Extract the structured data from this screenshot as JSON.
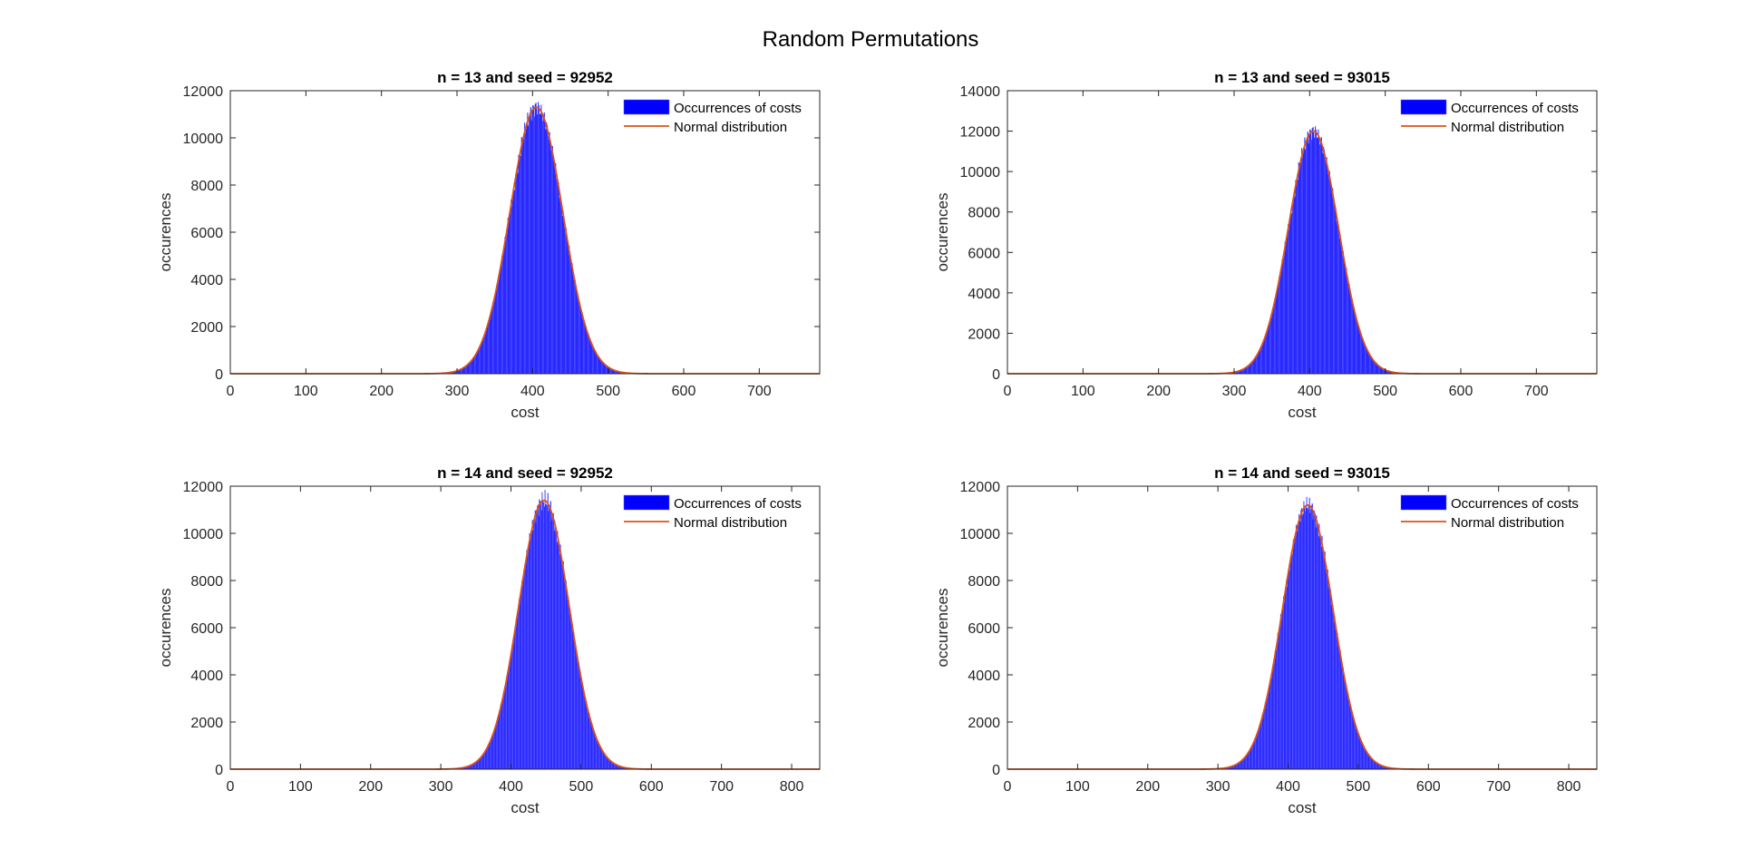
{
  "figure": {
    "title": "Random Permutations"
  },
  "colors": {
    "bars": "#0000ff",
    "bar_edge": "#6a6aff",
    "normal_curve": "#d95319",
    "axes": "#262626"
  },
  "chart_data": [
    {
      "type": "bar",
      "title": "n = 13 and seed = 92952",
      "xlabel": "cost",
      "ylabel": "occurences",
      "xlim": [
        0,
        780
      ],
      "ylim": [
        0,
        12000
      ],
      "xticks": [
        "0",
        "100",
        "200",
        "300",
        "400",
        "500",
        "600",
        "700"
      ],
      "yticks": [
        "0",
        "2000",
        "4000",
        "6000",
        "8000",
        "10000",
        "12000"
      ],
      "legend": {
        "position": "top-right",
        "entries": [
          "Occurrences of costs",
          "Normal distribution"
        ]
      },
      "grid": false,
      "histogram": {
        "mean": 405,
        "std": 35,
        "peak": 11300,
        "x_start": 240,
        "x_end": 560
      },
      "normal_fit": {
        "mean": 405,
        "std": 35,
        "peak": 11300
      }
    },
    {
      "type": "bar",
      "title": "n = 13 and seed = 93015",
      "xlabel": "cost",
      "ylabel": "occurences",
      "xlim": [
        0,
        780
      ],
      "ylim": [
        0,
        14000
      ],
      "xticks": [
        "0",
        "100",
        "200",
        "300",
        "400",
        "500",
        "600",
        "700"
      ],
      "yticks": [
        "0",
        "2000",
        "4000",
        "6000",
        "8000",
        "10000",
        "12000",
        "14000"
      ],
      "legend": {
        "position": "top-right",
        "entries": [
          "Occurrences of costs",
          "Normal distribution"
        ]
      },
      "grid": false,
      "histogram": {
        "mean": 405,
        "std": 33,
        "peak": 12000,
        "x_start": 240,
        "x_end": 560
      },
      "normal_fit": {
        "mean": 405,
        "std": 33,
        "peak": 12000
      }
    },
    {
      "type": "bar",
      "title": "n = 14 and seed = 92952",
      "xlabel": "cost",
      "ylabel": "occurences",
      "xlim": [
        0,
        840
      ],
      "ylim": [
        0,
        12000
      ],
      "xticks": [
        "0",
        "100",
        "200",
        "300",
        "400",
        "500",
        "600",
        "700",
        "800"
      ],
      "yticks": [
        "0",
        "2000",
        "4000",
        "6000",
        "8000",
        "10000",
        "12000"
      ],
      "legend": {
        "position": "top-right",
        "entries": [
          "Occurrences of costs",
          "Normal distribution"
        ]
      },
      "grid": false,
      "histogram": {
        "mean": 447,
        "std": 36,
        "peak": 11400,
        "x_start": 280,
        "x_end": 610
      },
      "normal_fit": {
        "mean": 447,
        "std": 36,
        "peak": 11400
      }
    },
    {
      "type": "bar",
      "title": "n = 14 and seed = 93015",
      "xlabel": "cost",
      "ylabel": "occurences",
      "xlim": [
        0,
        840
      ],
      "ylim": [
        0,
        12000
      ],
      "xticks": [
        "0",
        "100",
        "200",
        "300",
        "400",
        "500",
        "600",
        "700",
        "800"
      ],
      "yticks": [
        "0",
        "2000",
        "4000",
        "6000",
        "8000",
        "10000",
        "12000"
      ],
      "legend": {
        "position": "top-right",
        "entries": [
          "Occurrences of costs",
          "Normal distribution"
        ]
      },
      "grid": false,
      "histogram": {
        "mean": 428,
        "std": 36,
        "peak": 11200,
        "x_start": 260,
        "x_end": 600
      },
      "normal_fit": {
        "mean": 428,
        "std": 36,
        "peak": 11200
      }
    }
  ]
}
